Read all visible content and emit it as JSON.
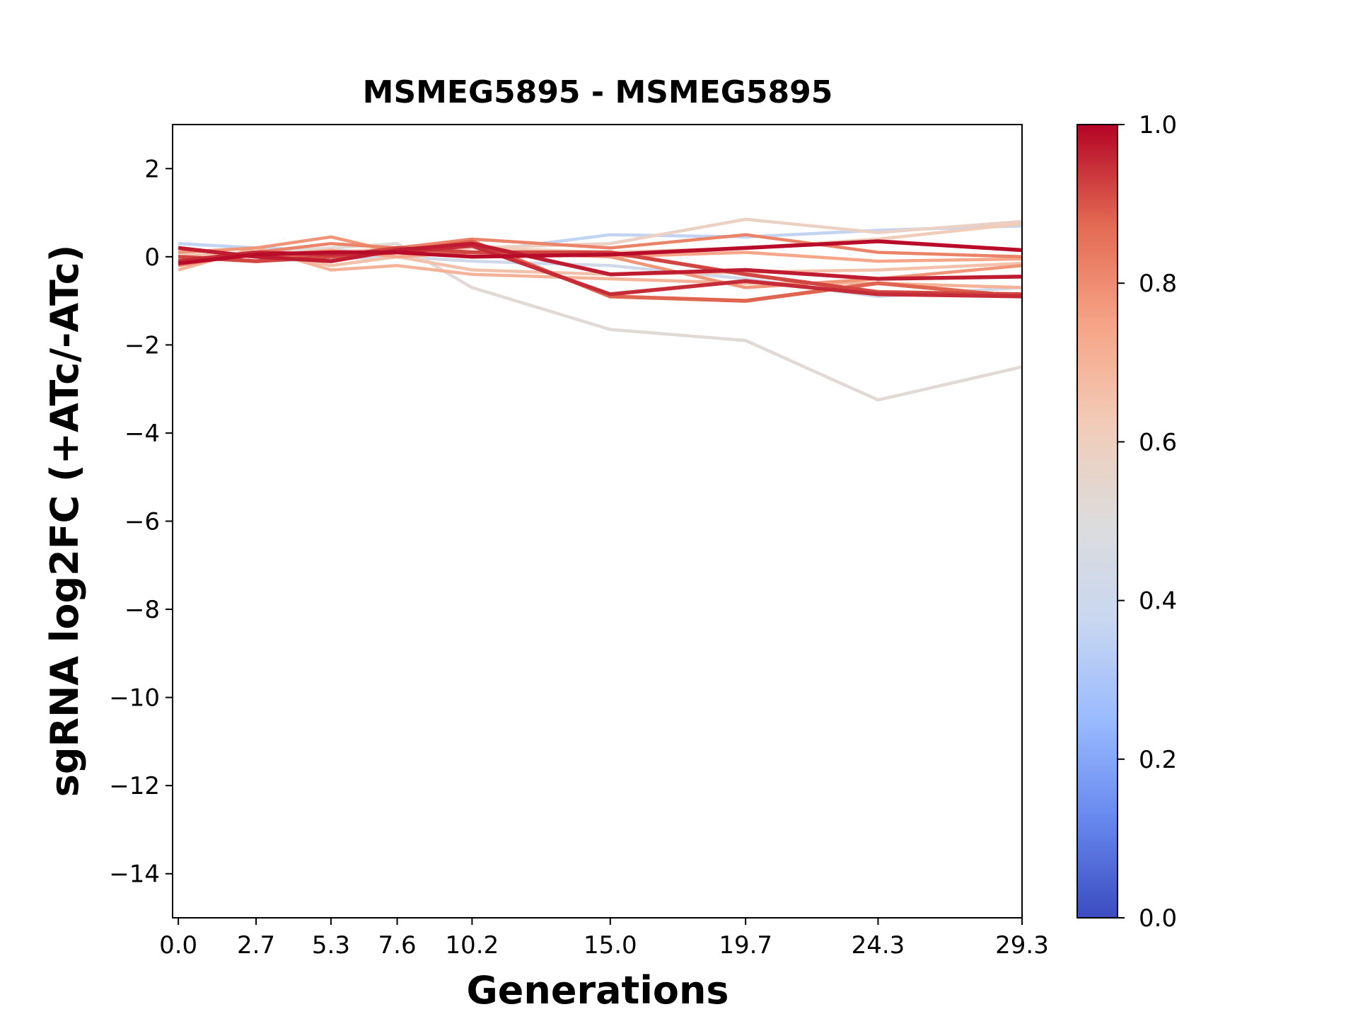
{
  "chart_data": {
    "type": "line",
    "title": "MSMEG5895 - MSMEG5895",
    "xlabel": "Generations",
    "ylabel": "sgRNA log2FC (+ATc/-ATc)",
    "x": [
      0.0,
      2.7,
      5.3,
      7.6,
      10.2,
      15.0,
      19.7,
      24.3,
      29.3
    ],
    "x_tick_labels": [
      "0.0",
      "2.7",
      "5.3",
      "7.6",
      "10.2",
      "15.0",
      "19.7",
      "24.3",
      "29.3"
    ],
    "xlim": [
      -0.2,
      29.3
    ],
    "ylim": [
      -15,
      3
    ],
    "y_ticks": [
      2,
      0,
      -2,
      -4,
      -6,
      -8,
      -10,
      -12,
      -14
    ],
    "y_tick_labels": [
      "2",
      "0",
      "−2",
      "−4",
      "−6",
      "−8",
      "−10",
      "−12",
      "−14"
    ],
    "grid": false,
    "colormap": "coolwarm",
    "colorbar": {
      "range": [
        0.0,
        1.0
      ],
      "ticks": [
        0.0,
        0.2,
        0.4,
        0.6,
        0.8,
        1.0
      ],
      "tick_labels": [
        "0.0",
        "0.2",
        "0.4",
        "0.6",
        "0.8",
        "1.0"
      ],
      "stops": [
        "#3b4cc0",
        "#6788ee",
        "#9abbff",
        "#c9d7f0",
        "#dddcdc",
        "#f2cbb7",
        "#f6a385",
        "#e26952",
        "#b40426"
      ]
    },
    "series": [
      {
        "color_value": 0.36,
        "values": [
          0.3,
          0.2,
          0.15,
          0.1,
          0.1,
          0.5,
          0.45,
          0.6,
          0.7
        ]
      },
      {
        "color_value": 0.42,
        "values": [
          0.1,
          -0.1,
          -0.05,
          0.0,
          -0.1,
          -0.2,
          -0.5,
          -0.9,
          -0.7
        ]
      },
      {
        "color_value": 0.52,
        "values": [
          0.0,
          0.1,
          0.2,
          0.3,
          -0.7,
          -1.65,
          -1.9,
          -3.25,
          -2.5
        ]
      },
      {
        "color_value": 0.58,
        "values": [
          0.1,
          0.0,
          0.0,
          0.1,
          0.2,
          0.3,
          0.85,
          0.55,
          0.8
        ]
      },
      {
        "color_value": 0.62,
        "values": [
          -0.1,
          0.0,
          0.1,
          0.2,
          0.2,
          0.1,
          0.2,
          0.4,
          0.75
        ]
      },
      {
        "color_value": 0.66,
        "values": [
          0.0,
          0.1,
          -0.2,
          0.0,
          -0.3,
          -0.4,
          -0.35,
          -0.3,
          -0.15
        ]
      },
      {
        "color_value": 0.7,
        "values": [
          -0.3,
          0.2,
          -0.3,
          -0.2,
          -0.4,
          -0.5,
          -0.6,
          -0.6,
          -0.7
        ]
      },
      {
        "color_value": 0.74,
        "values": [
          0.2,
          0.0,
          0.15,
          0.0,
          0.1,
          0.0,
          0.1,
          -0.1,
          -0.05
        ]
      },
      {
        "color_value": 0.78,
        "values": [
          0.1,
          0.2,
          0.45,
          0.1,
          0.1,
          0.0,
          -0.7,
          -0.5,
          -0.2
        ]
      },
      {
        "color_value": 0.82,
        "values": [
          -0.2,
          0.1,
          0.3,
          0.2,
          0.4,
          0.2,
          0.5,
          0.1,
          0.0
        ]
      },
      {
        "color_value": 0.88,
        "values": [
          0.2,
          0.0,
          0.0,
          0.1,
          0.35,
          -0.9,
          -1.0,
          -0.6,
          -0.9
        ]
      },
      {
        "color_value": 0.92,
        "values": [
          0.0,
          -0.1,
          0.0,
          0.2,
          0.1,
          0.1,
          -0.4,
          -0.8,
          -0.85
        ]
      },
      {
        "color_value": 0.95,
        "values": [
          -0.1,
          0.1,
          0.05,
          0.1,
          0.25,
          -0.85,
          -0.55,
          -0.85,
          -0.9
        ]
      },
      {
        "color_value": 0.97,
        "values": [
          0.2,
          0.0,
          -0.1,
          0.15,
          0.3,
          -0.4,
          -0.3,
          -0.5,
          -0.45
        ]
      },
      {
        "color_value": 0.99,
        "values": [
          -0.15,
          0.05,
          0.1,
          0.1,
          0.0,
          0.05,
          0.2,
          0.35,
          0.15
        ]
      }
    ]
  }
}
